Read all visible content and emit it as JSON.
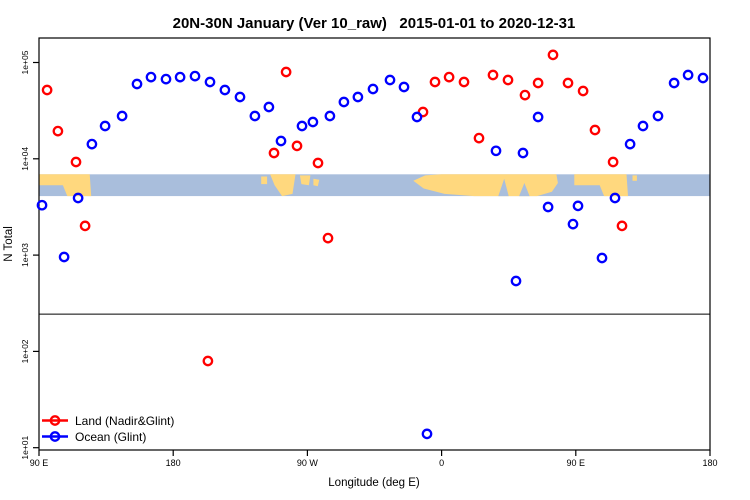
{
  "chart_data": {
    "type": "scatter",
    "title": "20N-30N January (Ver 10_raw)   2015-01-01 to 2020-12-31",
    "xlabel": "Longitude (deg E)",
    "ylabel": "N Total",
    "x_axis": {
      "note": "longitude axis unwrapped eastward, 90E around globe to 180 again",
      "range_deg": [
        90,
        540
      ],
      "tick_positions_deg": [
        90,
        180,
        270,
        360,
        450,
        540
      ],
      "tick_labels": [
        "90 E",
        "180",
        "90 W",
        "0",
        "90 E",
        "180"
      ]
    },
    "y_axis": {
      "scale": "log10",
      "range": [
        9.4,
        185000
      ],
      "tick_values": [
        10,
        100,
        1000,
        10000,
        100000
      ],
      "tick_labels": [
        "1e+01",
        "1e+02",
        "1e+03",
        "1e+04",
        "1e+05"
      ]
    },
    "grid": "off",
    "legend_position": "bottom-left-inside",
    "divider_line_value": 244,
    "map_strip": {
      "value_top": 6900,
      "value_bottom": 4100,
      "ocean_color": "#A9BEDC",
      "land_color": "#FFD87E",
      "land_polygons": [
        [
          [
            90,
            0
          ],
          [
            124,
            0
          ],
          [
            125,
            1
          ],
          [
            109,
            1
          ],
          [
            106,
            0.5
          ],
          [
            90,
            0.5
          ]
        ],
        [
          [
            239,
            0.1
          ],
          [
            243,
            0.1
          ],
          [
            243,
            0.45
          ],
          [
            239,
            0.45
          ]
        ],
        [
          [
            245,
            0
          ],
          [
            262,
            0
          ],
          [
            260,
            0.9
          ],
          [
            253,
            1
          ],
          [
            248,
            0.5
          ]
        ],
        [
          [
            265,
            0.05
          ],
          [
            272,
            0.05
          ],
          [
            271,
            0.5
          ],
          [
            266,
            0.45
          ]
        ],
        [
          [
            274,
            0.2
          ],
          [
            278,
            0.25
          ],
          [
            277,
            0.55
          ],
          [
            274,
            0.5
          ]
        ],
        [
          [
            341,
            0.3
          ],
          [
            349,
            0.05
          ],
          [
            360,
            0
          ],
          [
            437,
            0
          ],
          [
            438,
            0.4
          ],
          [
            434,
            0.8
          ],
          [
            424,
            1
          ],
          [
            382,
            1
          ],
          [
            362,
            0.9
          ],
          [
            348,
            0.65
          ]
        ],
        [
          [
            449,
            0
          ],
          [
            484,
            0
          ],
          [
            485,
            1
          ],
          [
            469,
            1
          ],
          [
            466,
            0.5
          ],
          [
            449,
            0.5
          ]
        ],
        [
          [
            488,
            0.05
          ],
          [
            491,
            0.05
          ],
          [
            491,
            0.3
          ],
          [
            488,
            0.3
          ]
        ]
      ],
      "ocean_notches": [
        [
          [
            398,
            1
          ],
          [
            402,
            0.2
          ],
          [
            405,
            1
          ]
        ],
        [
          [
            412,
            1
          ],
          [
            415.5,
            0.4
          ],
          [
            419,
            1
          ]
        ]
      ]
    },
    "series": [
      {
        "name": "Land (Nadir&Glint)",
        "color": "#FF0000",
        "marker": "open-circle",
        "points": [
          [
            95.4,
            51800
          ],
          [
            102.7,
            19400
          ],
          [
            114.8,
            9260
          ],
          [
            120.9,
            2010
          ],
          [
            203.3,
            79.5
          ],
          [
            247.6,
            11500
          ],
          [
            255.7,
            79600
          ],
          [
            263.0,
            13600
          ],
          [
            277.1,
            9040
          ],
          [
            283.8,
            1500
          ],
          [
            347.5,
            30600
          ],
          [
            355.6,
            62700
          ],
          [
            365.0,
            70600
          ],
          [
            375.0,
            62700
          ],
          [
            385.1,
            16400
          ],
          [
            394.5,
            74100
          ],
          [
            404.5,
            65800
          ],
          [
            415.9,
            45900
          ],
          [
            424.7,
            61200
          ],
          [
            434.7,
            120000
          ],
          [
            444.8,
            61200
          ],
          [
            454.9,
            50600
          ],
          [
            462.9,
            19900
          ],
          [
            475.0,
            9270
          ],
          [
            481.0,
            2010
          ]
        ]
      },
      {
        "name": "Ocean (Glint)",
        "color": "#0000FF",
        "marker": "open-circle",
        "points": [
          [
            92.0,
            3300
          ],
          [
            106.8,
            955
          ],
          [
            116.2,
            3920
          ],
          [
            125.5,
            14200
          ],
          [
            134.3,
            21900
          ],
          [
            145.7,
            27800
          ],
          [
            155.7,
            59800
          ],
          [
            165.1,
            70600
          ],
          [
            175.2,
            67300
          ],
          [
            184.6,
            70600
          ],
          [
            194.6,
            72300
          ],
          [
            204.7,
            62700
          ],
          [
            214.7,
            51800
          ],
          [
            224.8,
            43800
          ],
          [
            234.8,
            27800
          ],
          [
            244.2,
            34500
          ],
          [
            252.3,
            15300
          ],
          [
            266.4,
            21900
          ],
          [
            273.7,
            24100
          ],
          [
            285.1,
            27800
          ],
          [
            294.5,
            38900
          ],
          [
            303.9,
            43800
          ],
          [
            314.0,
            53100
          ],
          [
            325.4,
            65800
          ],
          [
            334.8,
            55600
          ],
          [
            343.5,
            27200
          ],
          [
            350.2,
            13.9
          ],
          [
            396.5,
            12100
          ],
          [
            409.9,
            538
          ],
          [
            414.6,
            11500
          ],
          [
            424.7,
            27200
          ],
          [
            431.4,
            3160
          ],
          [
            448.1,
            2100
          ],
          [
            451.5,
            3240
          ],
          [
            467.6,
            933
          ],
          [
            476.3,
            3920
          ],
          [
            486.4,
            14200
          ],
          [
            495.1,
            21900
          ],
          [
            505.1,
            27800
          ],
          [
            515.9,
            61200
          ],
          [
            525.3,
            74100
          ],
          [
            535.3,
            69000
          ]
        ]
      }
    ],
    "colors": {
      "axis": "#000000",
      "background": "#FFFFFF"
    }
  }
}
